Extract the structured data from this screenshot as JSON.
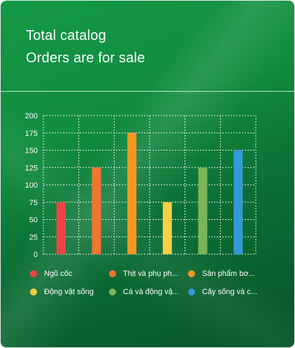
{
  "card": {
    "title_line1": "Total catalog",
    "title_line2": "Orders are for sale"
  },
  "chart_data": {
    "type": "bar",
    "title": "",
    "xlabel": "",
    "ylabel": "",
    "ylim": [
      0,
      200
    ],
    "yticks": [
      0,
      25,
      50,
      75,
      100,
      125,
      150,
      175,
      200
    ],
    "grid": true,
    "legend_position": "bottom",
    "categories": [
      "Ngũ cốc",
      "Thịt và phụ ph...",
      "Sản phẩm bơ...",
      "Động vật sống",
      "Cá và động vậ...",
      "Cây sống và c..."
    ],
    "values": [
      75,
      125,
      175,
      75,
      125,
      150
    ],
    "colors": [
      "#f04444",
      "#f07533",
      "#f5961e",
      "#f7cf49",
      "#7cb45a",
      "#3399d9"
    ]
  }
}
